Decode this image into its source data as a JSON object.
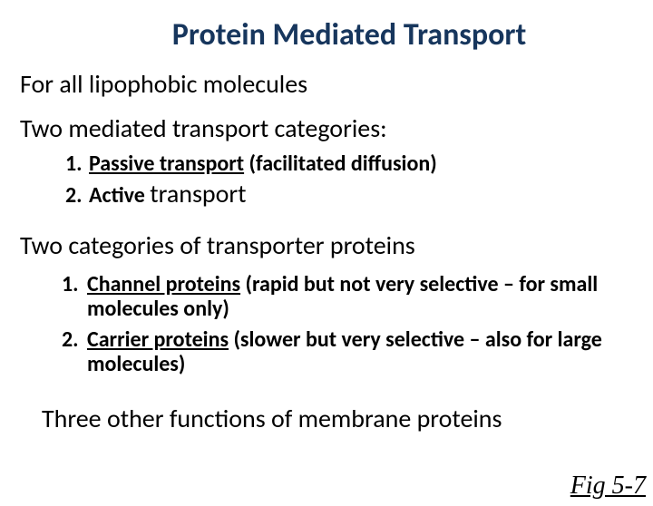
{
  "title": {
    "text": "Protein Mediated Transport",
    "color": "#17365d",
    "fontsize": 34
  },
  "line1": {
    "text": "For all lipophobic molecules",
    "fontsize": 28
  },
  "line2": {
    "text": "Two mediated transport categories:",
    "fontsize": 28
  },
  "sublist1": {
    "fontsize": 24,
    "item1_num": "1.",
    "item1_label": "Passive transport",
    "item1_rest": " (facilitated diffusion)",
    "item2_num": "2.",
    "item2_prefix": "Active ",
    "item2_word": "transport"
  },
  "line3": {
    "text": "Two categories of transporter proteins",
    "fontsize": 28
  },
  "sublist2": {
    "fontsize": 24,
    "item1_num": "1.",
    "item1_label": "Channel proteins",
    "item1_rest": " (rapid but not very selective – for small molecules only)",
    "item2_num": "2.",
    "item2_label": "Carrier proteins",
    "item2_rest": " (slower but very selective – also for large molecules)"
  },
  "line4": {
    "text": "Three other functions of membrane proteins",
    "fontsize": 28
  },
  "figref": "Fig 5-7"
}
